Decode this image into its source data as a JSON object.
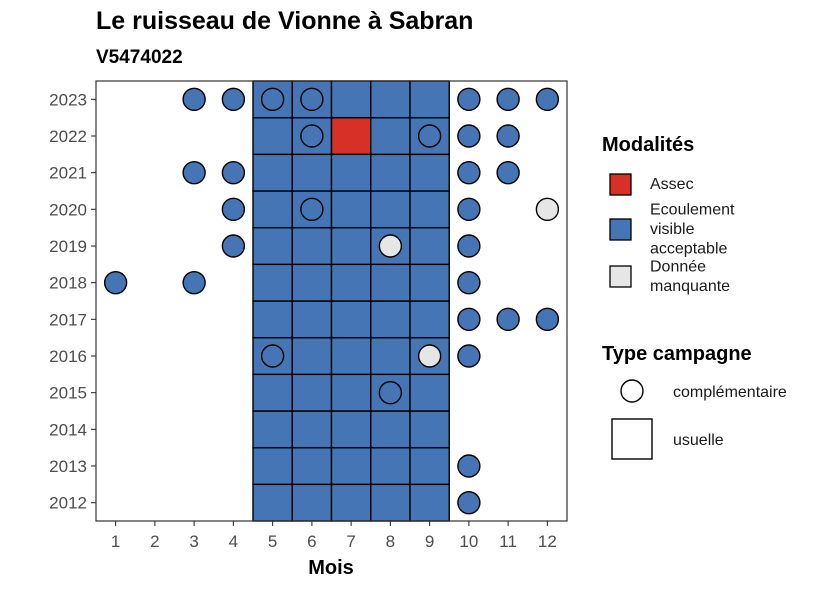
{
  "chart_data": {
    "type": "heatmap",
    "title": "Le ruisseau de Vionne à Sabran",
    "subtitle": "V5474022",
    "xlabel": "Mois",
    "ylabel": "",
    "x_ticks": [
      "1",
      "2",
      "3",
      "4",
      "5",
      "6",
      "7",
      "8",
      "9",
      "10",
      "11",
      "12"
    ],
    "y_ticks": [
      "2012",
      "2013",
      "2014",
      "2015",
      "2016",
      "2017",
      "2018",
      "2019",
      "2020",
      "2021",
      "2022",
      "2023"
    ],
    "colors": {
      "Assec": "#d73027",
      "Ecoulement visible acceptable": "#4575b4",
      "Donnée manquante": "#e6e6e6"
    },
    "legend_modalites": {
      "title": "Modalités",
      "items": [
        {
          "label_lines": [
            "Assec"
          ],
          "key": "Assec"
        },
        {
          "label_lines": [
            "Ecoulement",
            "visible",
            "acceptable"
          ],
          "key": "Ecoulement visible acceptable"
        },
        {
          "label_lines": [
            "Donnée",
            "manquante"
          ],
          "key": "Donnée manquante"
        }
      ]
    },
    "legend_campagne": {
      "title": "Type campagne",
      "items": [
        {
          "label": "complémentaire",
          "shape": "circle"
        },
        {
          "label": "usuelle",
          "shape": "square"
        }
      ]
    },
    "usuelle_months": [
      5,
      6,
      7,
      8,
      9
    ],
    "usuelle_years": [
      2012,
      2023
    ],
    "usuelle_overrides": [
      {
        "year": 2022,
        "month": 7,
        "modalite": "Assec"
      }
    ],
    "complementaire": [
      {
        "year": 2023,
        "month": 3,
        "modalite": "Ecoulement visible acceptable"
      },
      {
        "year": 2023,
        "month": 4,
        "modalite": "Ecoulement visible acceptable"
      },
      {
        "year": 2023,
        "month": 5,
        "modalite": "Ecoulement visible acceptable"
      },
      {
        "year": 2023,
        "month": 6,
        "modalite": "Ecoulement visible acceptable"
      },
      {
        "year": 2023,
        "month": 10,
        "modalite": "Ecoulement visible acceptable"
      },
      {
        "year": 2023,
        "month": 11,
        "modalite": "Ecoulement visible acceptable"
      },
      {
        "year": 2023,
        "month": 12,
        "modalite": "Ecoulement visible acceptable"
      },
      {
        "year": 2022,
        "month": 6,
        "modalite": "Ecoulement visible acceptable"
      },
      {
        "year": 2022,
        "month": 9,
        "modalite": "Ecoulement visible acceptable"
      },
      {
        "year": 2022,
        "month": 10,
        "modalite": "Ecoulement visible acceptable"
      },
      {
        "year": 2022,
        "month": 11,
        "modalite": "Ecoulement visible acceptable"
      },
      {
        "year": 2021,
        "month": 3,
        "modalite": "Ecoulement visible acceptable"
      },
      {
        "year": 2021,
        "month": 4,
        "modalite": "Ecoulement visible acceptable"
      },
      {
        "year": 2021,
        "month": 10,
        "modalite": "Ecoulement visible acceptable"
      },
      {
        "year": 2021,
        "month": 11,
        "modalite": "Ecoulement visible acceptable"
      },
      {
        "year": 2020,
        "month": 4,
        "modalite": "Ecoulement visible acceptable"
      },
      {
        "year": 2020,
        "month": 6,
        "modalite": "Ecoulement visible acceptable"
      },
      {
        "year": 2020,
        "month": 10,
        "modalite": "Ecoulement visible acceptable"
      },
      {
        "year": 2020,
        "month": 12,
        "modalite": "Donnée manquante"
      },
      {
        "year": 2019,
        "month": 4,
        "modalite": "Ecoulement visible acceptable"
      },
      {
        "year": 2019,
        "month": 8,
        "modalite": "Donnée manquante"
      },
      {
        "year": 2019,
        "month": 10,
        "modalite": "Ecoulement visible acceptable"
      },
      {
        "year": 2018,
        "month": 1,
        "modalite": "Ecoulement visible acceptable"
      },
      {
        "year": 2018,
        "month": 3,
        "modalite": "Ecoulement visible acceptable"
      },
      {
        "year": 2018,
        "month": 10,
        "modalite": "Ecoulement visible acceptable"
      },
      {
        "year": 2017,
        "month": 10,
        "modalite": "Ecoulement visible acceptable"
      },
      {
        "year": 2017,
        "month": 11,
        "modalite": "Ecoulement visible acceptable"
      },
      {
        "year": 2017,
        "month": 12,
        "modalite": "Ecoulement visible acceptable"
      },
      {
        "year": 2016,
        "month": 5,
        "modalite": "Ecoulement visible acceptable"
      },
      {
        "year": 2016,
        "month": 9,
        "modalite": "Donnée manquante"
      },
      {
        "year": 2016,
        "month": 10,
        "modalite": "Ecoulement visible acceptable"
      },
      {
        "year": 2015,
        "month": 8,
        "modalite": "Ecoulement visible acceptable"
      },
      {
        "year": 2013,
        "month": 10,
        "modalite": "Ecoulement visible acceptable"
      },
      {
        "year": 2012,
        "month": 10,
        "modalite": "Ecoulement visible acceptable"
      }
    ]
  }
}
